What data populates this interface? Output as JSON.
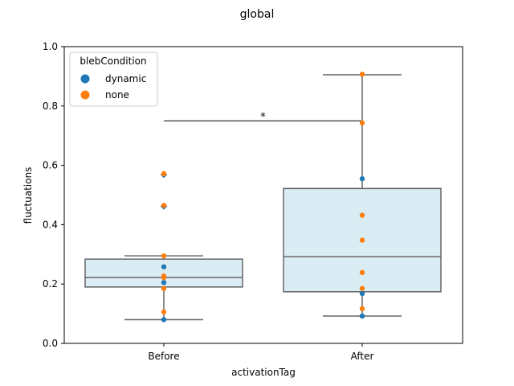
{
  "chart_data": {
    "type": "box",
    "title": "global",
    "xlabel": "activationTag",
    "ylabel": "fluctuations",
    "categories": [
      "Before",
      "After"
    ],
    "ylim": [
      0,
      1.0
    ],
    "yticks": [
      0.0,
      0.2,
      0.4,
      0.6,
      0.8,
      1.0
    ],
    "ytick_labels": [
      "0.0",
      "0.2",
      "0.4",
      "0.6",
      "0.8",
      "1.0"
    ],
    "grid": false,
    "box_color": "#dbedf4",
    "box_edge_color": "#666666",
    "boxes": [
      {
        "category": "Before",
        "whisker_low": 0.08,
        "q1": 0.19,
        "median": 0.222,
        "q3": 0.284,
        "whisker_high": 0.295,
        "outliers": [
          0.462,
          0.569
        ]
      },
      {
        "category": "After",
        "whisker_low": 0.092,
        "q1": 0.174,
        "median": 0.292,
        "q3": 0.522,
        "whisker_high": 0.905,
        "outliers": []
      }
    ],
    "legend": {
      "title": "blebCondition",
      "placement": "upper-left",
      "entries": [
        {
          "label": "dynamic",
          "color": "#1f77b4"
        },
        {
          "label": "none",
          "color": "#ff7f0e"
        }
      ]
    },
    "series": [
      {
        "name": "dynamic",
        "color": "#1f77b4",
        "points": [
          {
            "x": "Before",
            "y": 0.08
          },
          {
            "x": "Before",
            "y": 0.205
          },
          {
            "x": "Before",
            "y": 0.258
          },
          {
            "x": "Before",
            "y": 0.462
          },
          {
            "x": "Before",
            "y": 0.569
          },
          {
            "x": "After",
            "y": 0.092
          },
          {
            "x": "After",
            "y": 0.168
          },
          {
            "x": "After",
            "y": 0.555
          }
        ]
      },
      {
        "name": "none",
        "color": "#ff7f0e",
        "points": [
          {
            "x": "Before",
            "y": 0.106
          },
          {
            "x": "Before",
            "y": 0.185
          },
          {
            "x": "Before",
            "y": 0.222
          },
          {
            "x": "Before",
            "y": 0.227
          },
          {
            "x": "Before",
            "y": 0.295
          },
          {
            "x": "Before",
            "y": 0.465
          },
          {
            "x": "Before",
            "y": 0.572
          },
          {
            "x": "After",
            "y": 0.117
          },
          {
            "x": "After",
            "y": 0.185
          },
          {
            "x": "After",
            "y": 0.239
          },
          {
            "x": "After",
            "y": 0.348
          },
          {
            "x": "After",
            "y": 0.432
          },
          {
            "x": "After",
            "y": 0.743
          },
          {
            "x": "After",
            "y": 0.907
          }
        ]
      }
    ],
    "significance": {
      "from": "Before",
      "to": "After",
      "y": 0.75,
      "label": "*"
    }
  }
}
